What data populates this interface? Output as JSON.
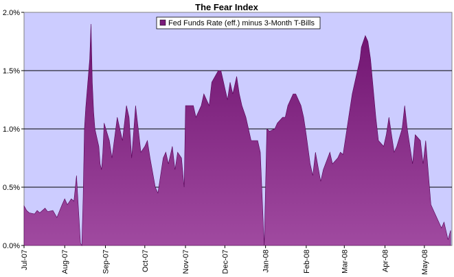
{
  "chart_data": {
    "type": "area",
    "title": "The Fear Index",
    "xlabel": "",
    "ylabel": "",
    "ylim": [
      0,
      0.02
    ],
    "y_ticks": [
      {
        "value": 0.0,
        "label": "0.0%"
      },
      {
        "value": 0.005,
        "label": "0.5%"
      },
      {
        "value": 0.01,
        "label": "1.0%"
      },
      {
        "value": 0.015,
        "label": "1.5%"
      },
      {
        "value": 0.02,
        "label": "2.0%"
      }
    ],
    "x_range": [
      "2007-07-01",
      "2008-05-22"
    ],
    "x_ticks": [
      "Jul-07",
      "Aug-07",
      "Sep-07",
      "Oct-07",
      "Nov-07",
      "Dec-07",
      "Jan-08",
      "Feb-08",
      "Mar-08",
      "Apr-08",
      "May-08"
    ],
    "x_tick_dates": [
      "2007-07-01",
      "2007-08-01",
      "2007-09-01",
      "2007-10-01",
      "2007-11-01",
      "2007-12-01",
      "2008-01-01",
      "2008-02-01",
      "2008-03-01",
      "2008-04-01",
      "2008-05-01"
    ],
    "grid": "horizontal",
    "legend_position": "top-center",
    "colors": {
      "plot_bg": "#ccccff",
      "fill_top": "#6f126f",
      "fill_bottom": "#a04aa0",
      "stroke": "#550055"
    },
    "series": [
      {
        "name": "Fed Funds Rate (eff.) minus 3-Month T-Bills",
        "x": [
          "2007-07-01",
          "2007-07-03",
          "2007-07-05",
          "2007-07-09",
          "2007-07-11",
          "2007-07-13",
          "2007-07-17",
          "2007-07-19",
          "2007-07-23",
          "2007-07-26",
          "2007-07-30",
          "2007-08-01",
          "2007-08-03",
          "2007-08-06",
          "2007-08-08",
          "2007-08-10",
          "2007-08-13",
          "2007-08-14",
          "2007-08-15",
          "2007-08-16",
          "2007-08-17",
          "2007-08-20",
          "2007-08-21",
          "2007-08-22",
          "2007-08-23",
          "2007-08-24",
          "2007-08-27",
          "2007-08-28",
          "2007-08-29",
          "2007-08-30",
          "2007-08-31",
          "2007-09-04",
          "2007-09-06",
          "2007-09-10",
          "2007-09-12",
          "2007-09-14",
          "2007-09-17",
          "2007-09-19",
          "2007-09-21",
          "2007-09-24",
          "2007-09-26",
          "2007-09-28",
          "2007-10-01",
          "2007-10-03",
          "2007-10-05",
          "2007-10-09",
          "2007-10-11",
          "2007-10-15",
          "2007-10-17",
          "2007-10-19",
          "2007-10-22",
          "2007-10-24",
          "2007-10-26",
          "2007-10-29",
          "2007-10-31",
          "2007-11-01",
          "2007-11-05",
          "2007-11-07",
          "2007-11-09",
          "2007-11-13",
          "2007-11-15",
          "2007-11-19",
          "2007-11-21",
          "2007-11-26",
          "2007-11-28",
          "2007-11-30",
          "2007-12-03",
          "2007-12-05",
          "2007-12-07",
          "2007-12-10",
          "2007-12-12",
          "2007-12-14",
          "2007-12-17",
          "2007-12-19",
          "2007-12-21",
          "2007-12-24",
          "2007-12-26",
          "2007-12-28",
          "2007-12-31",
          "2008-01-02",
          "2008-01-04",
          "2008-01-08",
          "2008-01-10",
          "2008-01-14",
          "2008-01-16",
          "2008-01-18",
          "2008-01-22",
          "2008-01-24",
          "2008-01-28",
          "2008-01-30",
          "2008-02-01",
          "2008-02-04",
          "2008-02-06",
          "2008-02-08",
          "2008-02-12",
          "2008-02-14",
          "2008-02-19",
          "2008-02-21",
          "2008-02-25",
          "2008-02-27",
          "2008-02-29",
          "2008-03-03",
          "2008-03-05",
          "2008-03-07",
          "2008-03-11",
          "2008-03-13",
          "2008-03-14",
          "2008-03-17",
          "2008-03-19",
          "2008-03-21",
          "2008-03-25",
          "2008-03-27",
          "2008-03-31",
          "2008-04-02",
          "2008-04-04",
          "2008-04-08",
          "2008-04-10",
          "2008-04-14",
          "2008-04-16",
          "2008-04-18",
          "2008-04-22",
          "2008-04-24",
          "2008-04-28",
          "2008-04-30",
          "2008-05-02",
          "2008-05-06",
          "2008-05-08",
          "2008-05-12",
          "2008-05-14",
          "2008-05-16",
          "2008-05-19",
          "2008-05-21"
        ],
        "values": [
          0.0034,
          0.003,
          0.0028,
          0.0027,
          0.003,
          0.0028,
          0.0032,
          0.0029,
          0.003,
          0.0024,
          0.0035,
          0.004,
          0.0035,
          0.004,
          0.0038,
          0.006,
          0.0002,
          0.0,
          0.004,
          0.01,
          0.0118,
          0.016,
          0.019,
          0.014,
          0.0115,
          0.01,
          0.0085,
          0.007,
          0.0065,
          0.008,
          0.0105,
          0.009,
          0.0075,
          0.011,
          0.01,
          0.009,
          0.012,
          0.011,
          0.0075,
          0.012,
          0.01,
          0.008,
          0.0085,
          0.009,
          0.0075,
          0.005,
          0.0045,
          0.0075,
          0.008,
          0.007,
          0.0085,
          0.0065,
          0.008,
          0.0075,
          0.005,
          0.012,
          0.012,
          0.012,
          0.011,
          0.012,
          0.013,
          0.012,
          0.014,
          0.015,
          0.015,
          0.014,
          0.0125,
          0.014,
          0.013,
          0.0145,
          0.013,
          0.012,
          0.011,
          0.01,
          0.009,
          0.009,
          0.009,
          0.008,
          0.0,
          0.01,
          0.0098,
          0.01,
          0.0105,
          0.011,
          0.011,
          0.012,
          0.013,
          0.013,
          0.012,
          0.011,
          0.0095,
          0.007,
          0.006,
          0.008,
          0.0055,
          0.0065,
          0.008,
          0.007,
          0.0075,
          0.008,
          0.0078,
          0.01,
          0.0115,
          0.013,
          0.015,
          0.016,
          0.017,
          0.018,
          0.0175,
          0.016,
          0.011,
          0.009,
          0.0085,
          0.0095,
          0.011,
          0.008,
          0.0085,
          0.01,
          0.012,
          0.01,
          0.007,
          0.0095,
          0.009,
          0.007,
          0.009,
          0.0035,
          0.003,
          0.002,
          0.0015,
          0.002,
          0.0005,
          0.0013
        ]
      }
    ]
  }
}
